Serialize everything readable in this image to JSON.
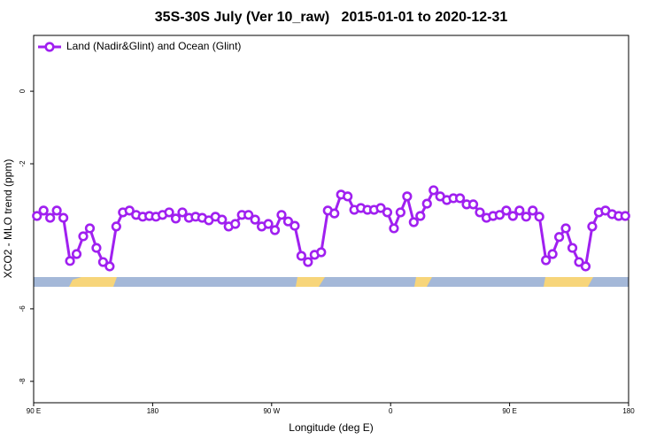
{
  "chart_data": {
    "type": "line",
    "title": "35S-30S July (Ver 10_raw)   2015-01-01 to 2020-12-31",
    "x_label": "Longitude (deg E)",
    "y_label": "XCO2 - MLO trend (ppm)",
    "xlim": [
      90,
      540
    ],
    "ylim": [
      -8.59,
      1.54
    ],
    "xticks": [
      {
        "value": 90,
        "label": "90 E"
      },
      180,
      {
        "value": 270,
        "label": "90 W"
      },
      {
        "value": 360,
        "label": "0"
      },
      {
        "value": 450,
        "label": "90 E"
      },
      {
        "value": 540,
        "label": "180"
      }
    ],
    "yticks": [
      0,
      -2,
      -6,
      -8
    ],
    "legend_position": "upper-left",
    "x": [
      92.5,
      97.5,
      102.5,
      107.5,
      112.5,
      117.5,
      122.5,
      127.5,
      132.5,
      137.5,
      142.5,
      147.5,
      152.5,
      157.5,
      162.5,
      167.5,
      172.5,
      177.5,
      182.5,
      187.5,
      192.5,
      197.5,
      202.5,
      207.5,
      212.5,
      217.5,
      222.5,
      227.5,
      232.5,
      237.5,
      242.5,
      247.5,
      252.5,
      257.5,
      262.5,
      267.5,
      272.5,
      277.5,
      282.5,
      287.5,
      292.5,
      297.5,
      302.5,
      307.5,
      312.5,
      317.5,
      322.5,
      327.5,
      332.5,
      337.5,
      342.5,
      347.5,
      352.5,
      357.5,
      362.5,
      367.5,
      372.5,
      377.5,
      382.5,
      387.5,
      392.5,
      397.5,
      402.5,
      407.5,
      412.5,
      417.5,
      422.5,
      427.5,
      432.5,
      437.5,
      442.5,
      447.5,
      452.5,
      457.5,
      462.5,
      467.5,
      472.5,
      477.5,
      482.5,
      487.5,
      492.5,
      497.5,
      502.5,
      507.5,
      512.5,
      517.5,
      522.5,
      527.5,
      532.5,
      537.5
    ],
    "series": [
      {
        "name": "Land (Nadir&Glint) and Ocean (Glint)",
        "color": "#a020f0",
        "values": [
          -3.44,
          -3.29,
          -3.49,
          -3.29,
          -3.49,
          -4.68,
          -4.49,
          -4.0,
          -3.78,
          -4.32,
          -4.71,
          -4.83,
          -3.73,
          -3.34,
          -3.29,
          -3.41,
          -3.46,
          -3.44,
          -3.46,
          -3.41,
          -3.34,
          -3.51,
          -3.34,
          -3.49,
          -3.46,
          -3.49,
          -3.56,
          -3.46,
          -3.54,
          -3.73,
          -3.66,
          -3.41,
          -3.41,
          -3.54,
          -3.73,
          -3.66,
          -3.83,
          -3.41,
          -3.59,
          -3.71,
          -4.54,
          -4.71,
          -4.51,
          -4.44,
          -3.29,
          -3.37,
          -2.85,
          -2.9,
          -3.27,
          -3.22,
          -3.27,
          -3.27,
          -3.22,
          -3.34,
          -3.78,
          -3.34,
          -2.9,
          -3.61,
          -3.44,
          -3.1,
          -2.73,
          -2.9,
          -3.0,
          -2.95,
          -2.95,
          -3.12,
          -3.12,
          -3.34,
          -3.49,
          -3.44,
          -3.41,
          -3.29,
          -3.44,
          -3.29,
          -3.46,
          -3.29,
          -3.46,
          -4.66,
          -4.49,
          -4.02,
          -3.78,
          -4.32,
          -4.71,
          -4.83,
          -3.73,
          -3.34,
          -3.29,
          -3.39,
          -3.44,
          -3.44
        ]
      }
    ]
  }
}
